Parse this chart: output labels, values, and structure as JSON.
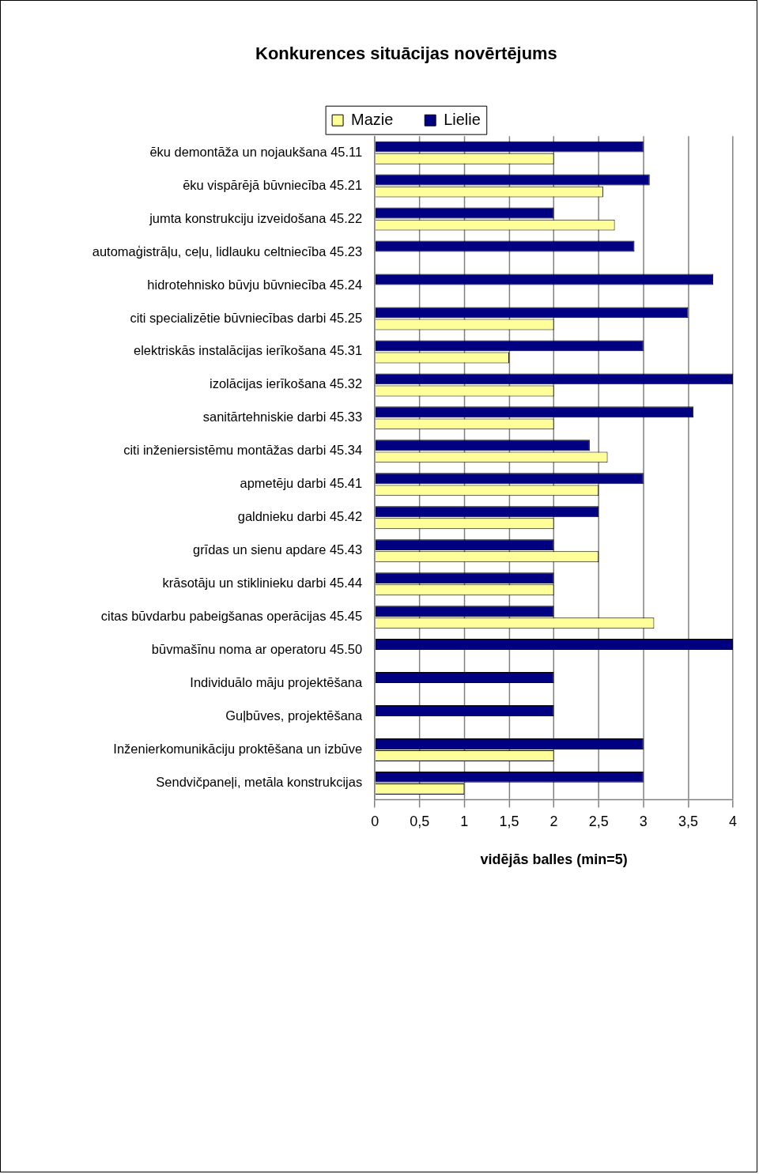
{
  "chart_data": {
    "type": "bar",
    "orientation": "horizontal",
    "title": "Konkurences situācijas novērtējums",
    "xlabel": "vidējās balles (min=5)",
    "categories": [
      "ēku demontāža un nojaukšana 45.11",
      "ēku vispārējā būvniecība 45.21",
      "jumta konstrukciju izveidošana 45.22",
      "automaģistrāļu, ceļu, lidlauku celtniecība 45.23",
      "hidrotehnisko būvju būvniecība 45.24",
      "citi specializētie būvniecības darbi 45.25",
      "elektriskās instalācijas ierīkošana 45.31",
      "izolācijas ierīkošana 45.32",
      "sanitārtehniskie darbi 45.33",
      "citi inženiersistēmu montāžas darbi 45.34",
      "apmetēju darbi 45.41",
      "galdnieku darbi 45.42",
      "grīdas un sienu apdare 45.43",
      "krāsotāju un stiklinieku darbi 45.44",
      "citas būvdarbu pabeigšanas operācijas 45.45",
      "būvmašīnu noma ar operatoru 45.50",
      "Individuālo māju projektēšana",
      "Guļbūves, projektēšana",
      "Inženierkomunikāciju proktēšana un izbūve",
      "Sendvičpaneļi, metāla konstrukcijas"
    ],
    "series": [
      {
        "name": "Lielie",
        "color": "#000080",
        "values": [
          3,
          3.07,
          2,
          2.9,
          3.78,
          3.5,
          3,
          4,
          3.56,
          2.4,
          3,
          2.5,
          2,
          2,
          2,
          4,
          2,
          2,
          3,
          3
        ]
      },
      {
        "name": "Mazie",
        "color": "#ffff99",
        "values": [
          2,
          2.55,
          2.68,
          null,
          null,
          2,
          1.5,
          2,
          2,
          2.6,
          2.5,
          2,
          2.5,
          2,
          3.12,
          null,
          null,
          null,
          2,
          1
        ]
      }
    ],
    "xlim": [
      0,
      4
    ],
    "xticks": [
      0,
      {
        "value": 0.5,
        "label": "0,5"
      },
      1,
      {
        "value": 1.5,
        "label": "1,5"
      },
      2,
      {
        "value": 2.5,
        "label": "2,5"
      },
      3,
      {
        "value": 3.5,
        "label": "3,5"
      },
      4
    ],
    "grid": "x",
    "legend": "top"
  }
}
